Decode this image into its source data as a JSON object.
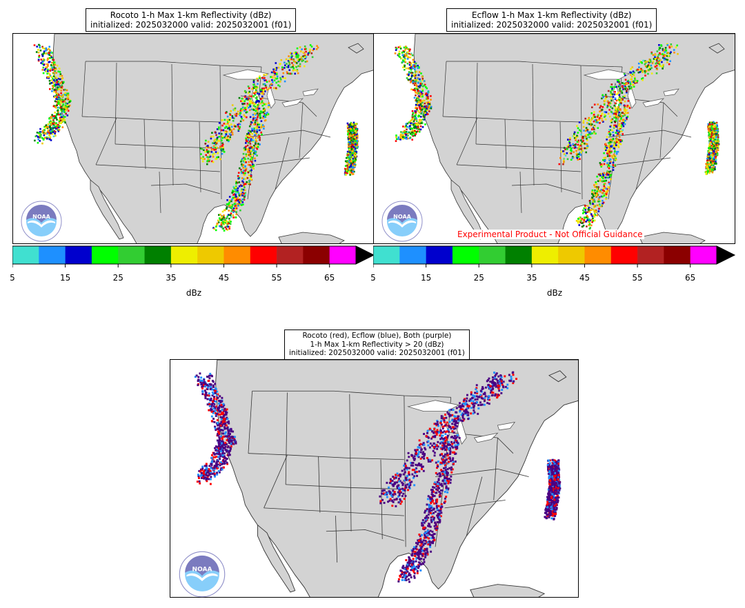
{
  "panels": [
    {
      "id": "rocoto",
      "title_line1": "Rocoto 1-h Max 1-km Reflectivity (dBz)",
      "title_line2": "initialized: 2025032000 valid: 2025032001 (f01)"
    },
    {
      "id": "ecflow",
      "title_line1": "Ecflow 1-h Max 1-km Reflectivity (dBz)",
      "title_line2": "initialized: 2025032000 valid: 2025032001 (f01)"
    },
    {
      "id": "difference",
      "title_line1": "Rocoto (red), Ecflow (blue), Both (purple)",
      "title_line2": "1-h Max 1-km Reflectivity > 20 (dBz)",
      "title_line3": "initialized: 2025032000 valid: 2025032001 (f01)"
    }
  ],
  "colorbar": {
    "label": "dBz",
    "ticks": [
      "5",
      "15",
      "25",
      "35",
      "45",
      "55",
      "65"
    ],
    "tick_values": [
      5,
      15,
      25,
      35,
      45,
      55,
      65
    ],
    "range": [
      5,
      70
    ],
    "extend": "max",
    "colors": [
      "#40e0d0",
      "#1e90ff",
      "#0000cd",
      "#00ff00",
      "#32cd32",
      "#008000",
      "#eeee00",
      "#eec900",
      "#ff8c00",
      "#ff0000",
      "#b22222",
      "#8b0000",
      "#ff00ff"
    ],
    "extend_color": "#000000"
  },
  "disclaimer": "Experimental Product - Not Official Guidance",
  "logo": {
    "text": "NOAA",
    "ring_text": "NATIONAL OCEANIC AND ATMOSPHERIC ADMINISTRATION · U.S. DEPARTMENT OF COMMERCE"
  },
  "colors": {
    "land": "#d3d3d3",
    "ocean": "#ffffff",
    "rocoto": "#ff0000",
    "ecflow": "#1e90ff",
    "both": "#4b0082"
  }
}
